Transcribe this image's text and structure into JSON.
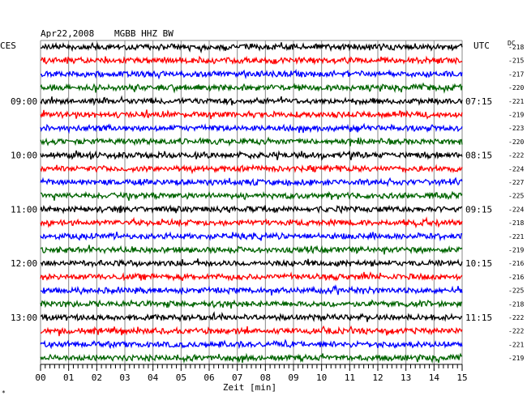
{
  "header": {
    "date": "Apr22,2008",
    "station": "MGBB HHZ BW",
    "left_zone": "CES",
    "right_zone": "UTC",
    "dc_label": "DC"
  },
  "footer": {
    "xlabel": "Zeit [min]",
    "corner_mark": "*"
  },
  "chart_data": {
    "type": "line",
    "title": "Apr22,2008   MGBB HHZ BW",
    "xlabel": "Zeit [min]",
    "xlim": [
      0,
      15
    ],
    "x_ticks": [
      "00",
      "01",
      "02",
      "03",
      "04",
      "05",
      "06",
      "07",
      "08",
      "09",
      "10",
      "11",
      "12",
      "13",
      "14",
      "15"
    ],
    "line_colors": [
      "#000000",
      "#ff0000",
      "#0000ff",
      "#006400"
    ],
    "left_time_labels": [
      {
        "row": 4,
        "text": "09:00"
      },
      {
        "row": 8,
        "text": "10:00"
      },
      {
        "row": 12,
        "text": "11:00"
      },
      {
        "row": 16,
        "text": "12:00"
      },
      {
        "row": 20,
        "text": "13:00"
      }
    ],
    "right_time_labels": [
      {
        "row": 4,
        "text": "07:15"
      },
      {
        "row": 8,
        "text": "08:15"
      },
      {
        "row": 12,
        "text": "09:15"
      },
      {
        "row": 16,
        "text": "10:15"
      },
      {
        "row": 20,
        "text": "11:15"
      }
    ],
    "trace_dc_offsets": [
      -218,
      -215,
      -217,
      -220,
      -221,
      -219,
      -223,
      -220,
      -222,
      -224,
      -227,
      -225,
      -224,
      -218,
      -221,
      -219,
      -216,
      -216,
      -225,
      -218,
      -222,
      -222,
      -221,
      -219
    ]
  }
}
